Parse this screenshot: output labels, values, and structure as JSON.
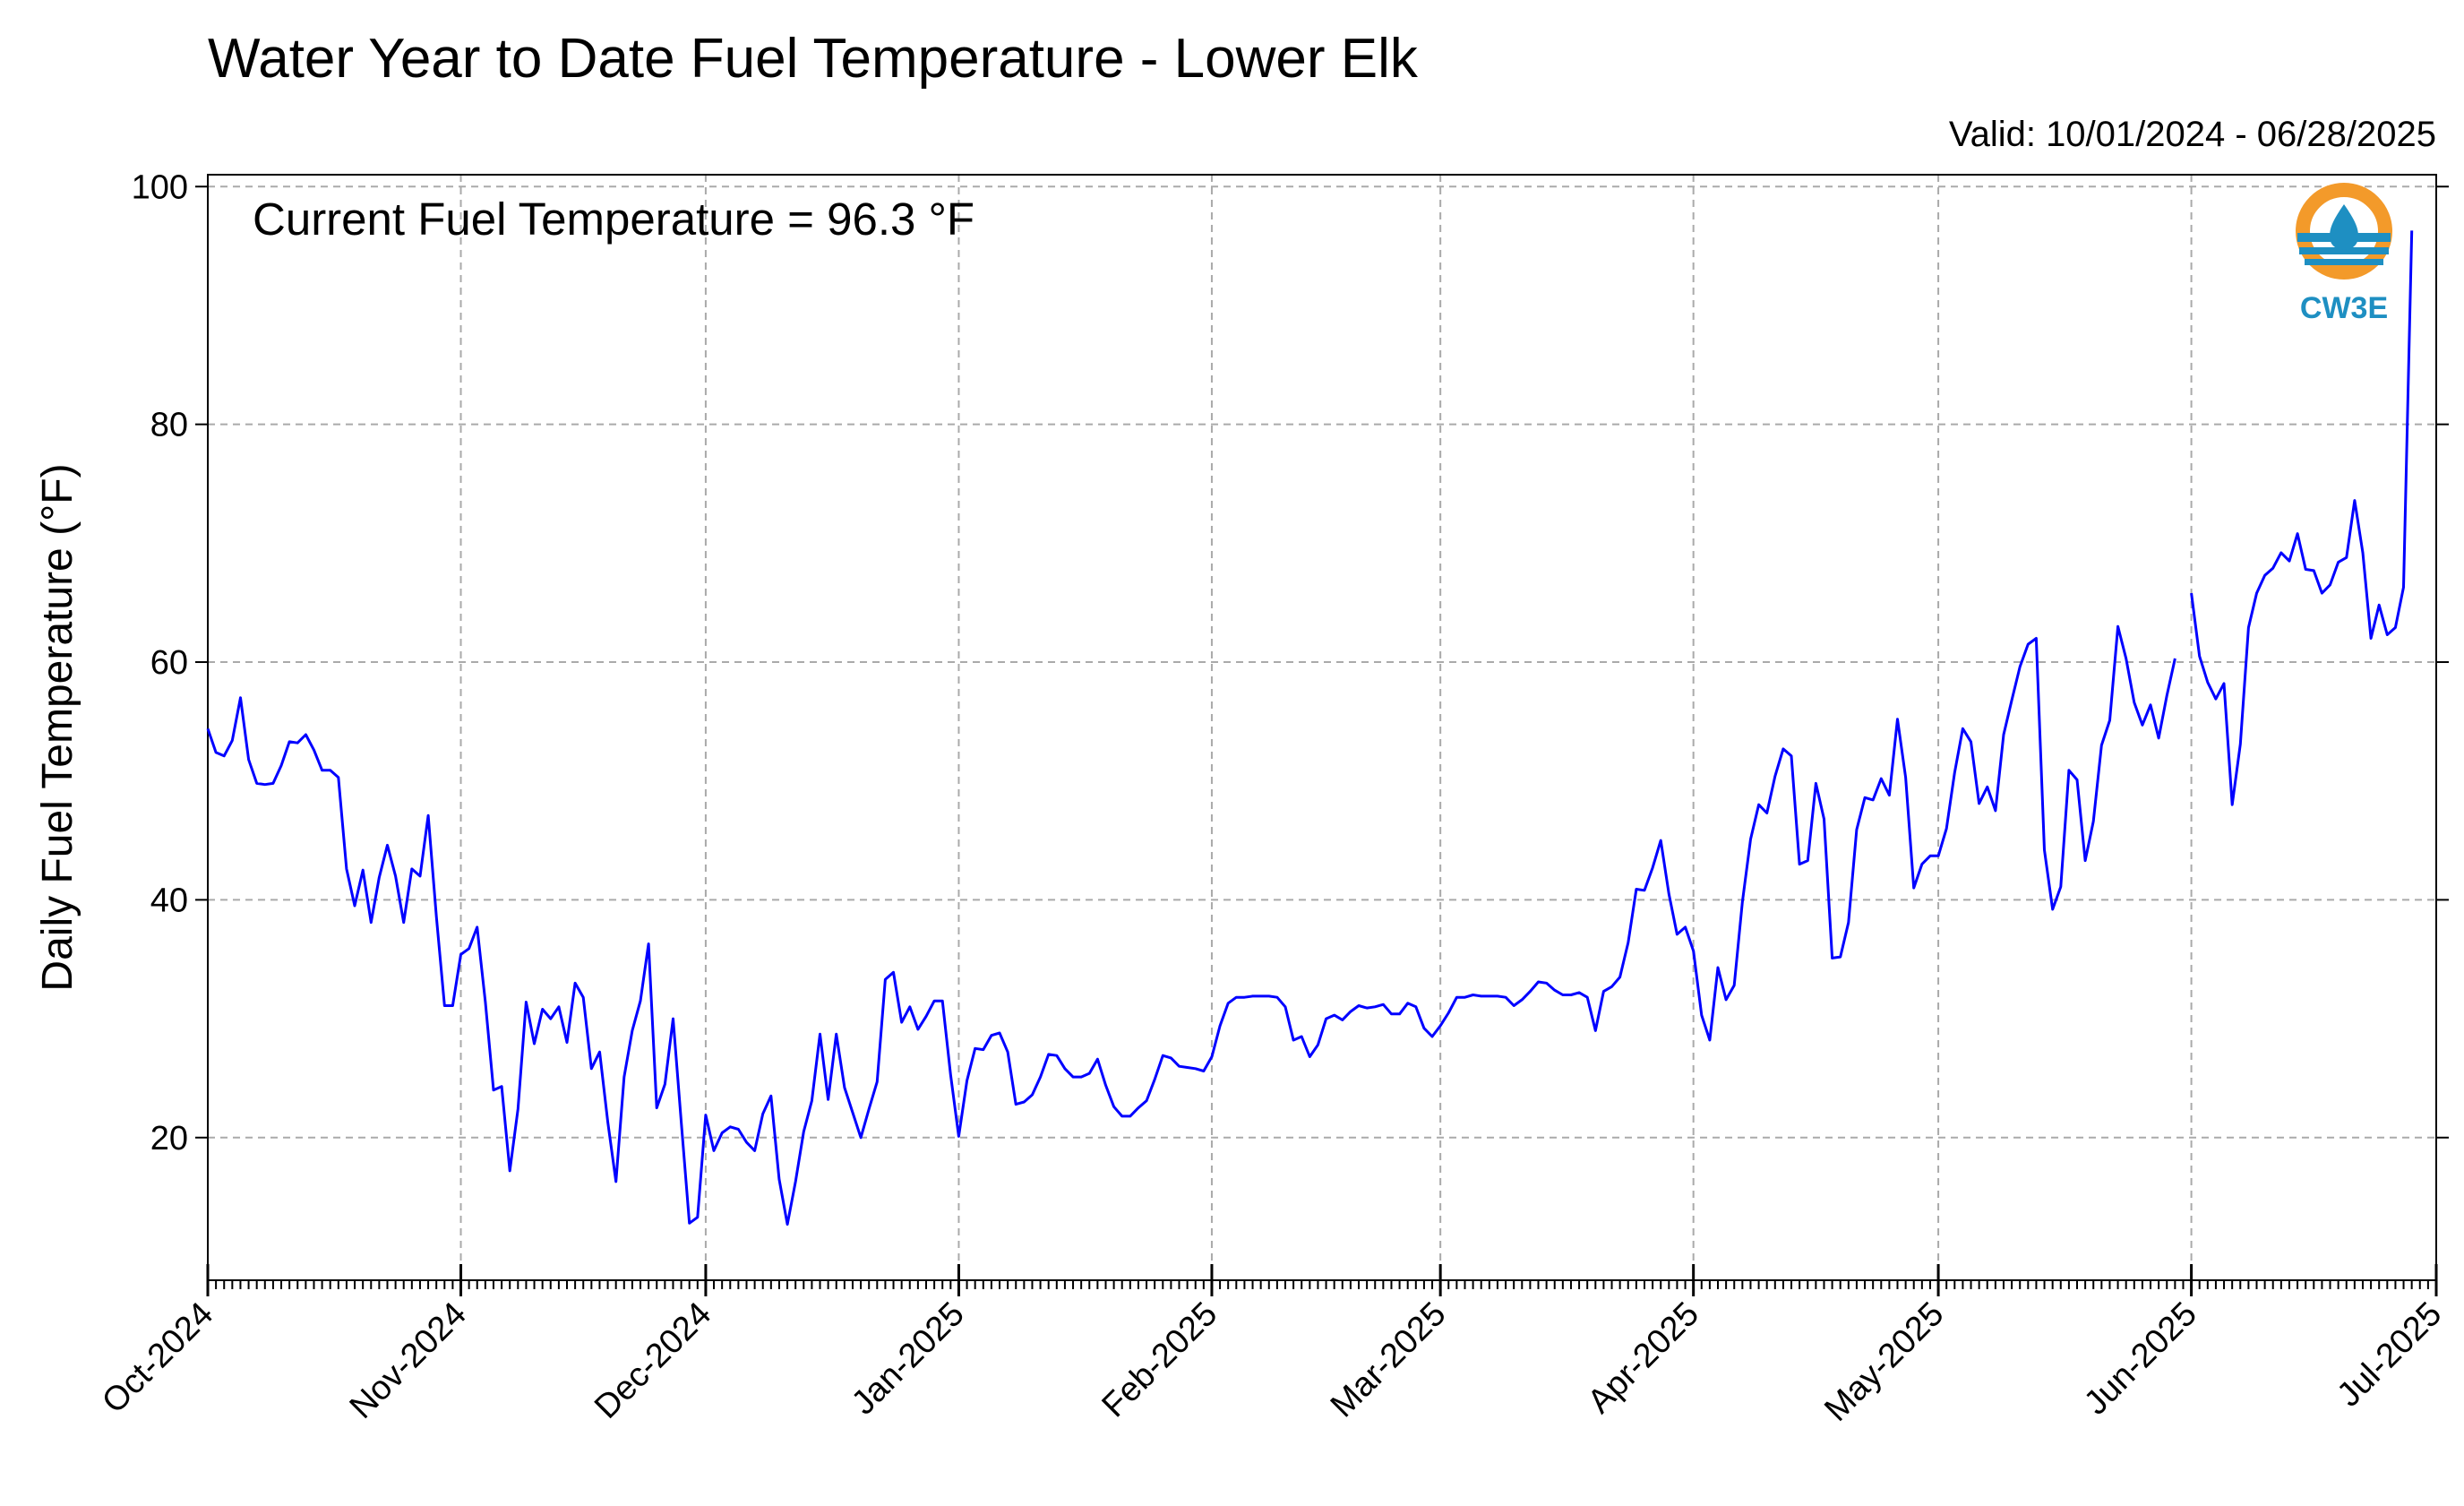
{
  "chart_data": {
    "type": "line",
    "title": "Water Year to Date Fuel Temperature - Lower Elk",
    "valid_text": "Valid: 10/01/2024 - 06/28/2025",
    "annotation": "Current Fuel Temperature = 96.3 °F",
    "ylabel": "Daily Fuel Temperature (°F)",
    "xlabel": "",
    "ylim": [
      8,
      101
    ],
    "xlim": [
      "2024-10-01",
      "2025-07-01"
    ],
    "yticks": [
      20,
      40,
      60,
      80,
      100
    ],
    "x_tick_labels": [
      "Oct-2024",
      "Nov-2024",
      "Dec-2024",
      "Jan-2025",
      "Feb-2025",
      "Mar-2025",
      "Apr-2025",
      "May-2025",
      "Jun-2025",
      "Jul-2025"
    ],
    "x_tick_dates": [
      "2024-10-01",
      "2024-11-01",
      "2024-12-01",
      "2025-01-01",
      "2025-02-01",
      "2025-03-01",
      "2025-04-01",
      "2025-05-01",
      "2025-06-01",
      "2025-07-01"
    ],
    "grid": true,
    "line_color": "#0000ff",
    "logo_text": "CW3E",
    "logo_colors": {
      "ring": "#f39a2a",
      "water": "#1e8fc2"
    },
    "series": [
      {
        "start_date": "2024-10-01",
        "values": [
          54.4,
          52.4,
          52.1,
          53.4,
          57.0,
          51.8,
          49.8,
          49.7,
          49.8,
          51.3,
          53.3,
          53.2,
          53.9,
          52.6,
          50.9,
          50.9,
          50.3,
          42.6,
          39.5,
          42.5,
          38.1,
          41.9,
          44.6,
          42.0,
          38.1,
          42.6,
          42.0,
          47.1,
          38.6,
          31.1,
          31.1,
          35.4,
          35.9,
          37.7,
          31.4,
          24.0,
          24.3,
          17.2,
          22.4,
          31.4,
          27.9,
          30.8,
          30.0,
          31.0,
          28.0,
          33.0,
          31.8,
          25.8,
          27.2,
          21.3,
          16.3,
          25.1,
          29.0,
          31.5,
          36.3,
          22.5,
          24.5,
          30.0,
          21.3,
          12.8,
          13.3,
          21.9,
          18.9,
          20.4,
          20.9,
          20.7,
          19.6,
          18.9,
          22.0,
          23.5,
          16.5,
          12.7,
          16.3,
          20.5,
          23.1,
          28.7,
          23.2,
          28.7,
          24.2,
          22.1,
          20.0,
          22.4,
          24.7,
          33.3,
          33.9,
          29.7,
          31.0,
          29.1,
          30.2,
          31.5,
          31.5,
          25.3,
          20.1,
          24.8,
          27.5,
          27.4,
          28.6,
          28.8,
          27.2,
          22.8,
          23.0,
          23.6,
          25.1,
          27.0,
          26.9,
          25.8,
          25.1,
          25.1,
          25.4,
          26.6,
          24.4,
          22.6,
          21.8,
          21.8,
          22.5,
          23.1,
          24.9,
          26.9,
          26.7,
          26.0,
          25.9,
          25.8,
          25.6,
          26.8,
          29.4,
          31.3,
          31.8,
          31.8,
          31.9,
          31.9,
          31.9,
          31.8,
          31.0,
          28.2,
          28.5,
          26.8,
          27.8,
          30.0,
          30.3,
          29.9,
          30.6,
          31.1,
          30.9,
          31.0,
          31.2,
          30.4,
          30.4,
          31.3,
          31.0,
          29.2,
          28.5,
          29.4,
          30.5,
          31.8,
          31.8,
          32.0,
          31.9,
          31.9,
          31.9,
          31.8,
          31.1,
          31.6,
          32.3,
          33.1,
          33.0,
          32.4,
          32.0,
          32.0,
          32.2,
          31.8,
          29.0,
          32.3,
          32.7,
          33.5,
          36.4,
          40.9,
          40.8,
          42.7,
          45.0,
          40.5,
          37.1,
          37.7,
          35.7,
          30.3,
          28.2,
          34.3,
          31.6,
          32.8,
          39.8,
          45.1,
          48.0,
          47.3,
          50.4,
          52.7,
          52.1,
          43.0,
          43.3,
          49.8,
          46.8,
          35.1,
          35.2,
          38.1,
          45.9,
          48.6,
          48.4,
          50.2,
          48.8,
          55.2,
          50.3,
          41.0,
          43.0,
          43.7,
          43.7,
          46.0,
          50.7,
          54.4,
          53.3,
          48.1,
          49.5,
          47.5,
          53.9,
          56.8,
          59.6,
          61.5,
          62.0,
          44.2,
          39.2,
          41.1,
          50.9,
          50.1,
          43.3,
          46.6,
          53.0,
          55.1,
          63.0,
          60.3,
          56.6,
          54.7,
          56.4,
          53.6,
          57.2,
          60.3
        ]
      },
      {
        "start_date": "2025-06-01",
        "values": [
          65.8,
          60.5,
          58.3,
          56.9,
          58.2,
          48.0,
          53.1,
          62.9,
          65.8,
          67.3,
          67.9,
          69.2,
          68.5,
          70.8,
          67.8,
          67.7,
          65.8,
          66.5,
          68.4,
          68.8,
          73.6,
          69.2,
          62.0,
          64.8,
          62.3,
          62.9,
          66.3,
          96.3
        ]
      }
    ]
  }
}
